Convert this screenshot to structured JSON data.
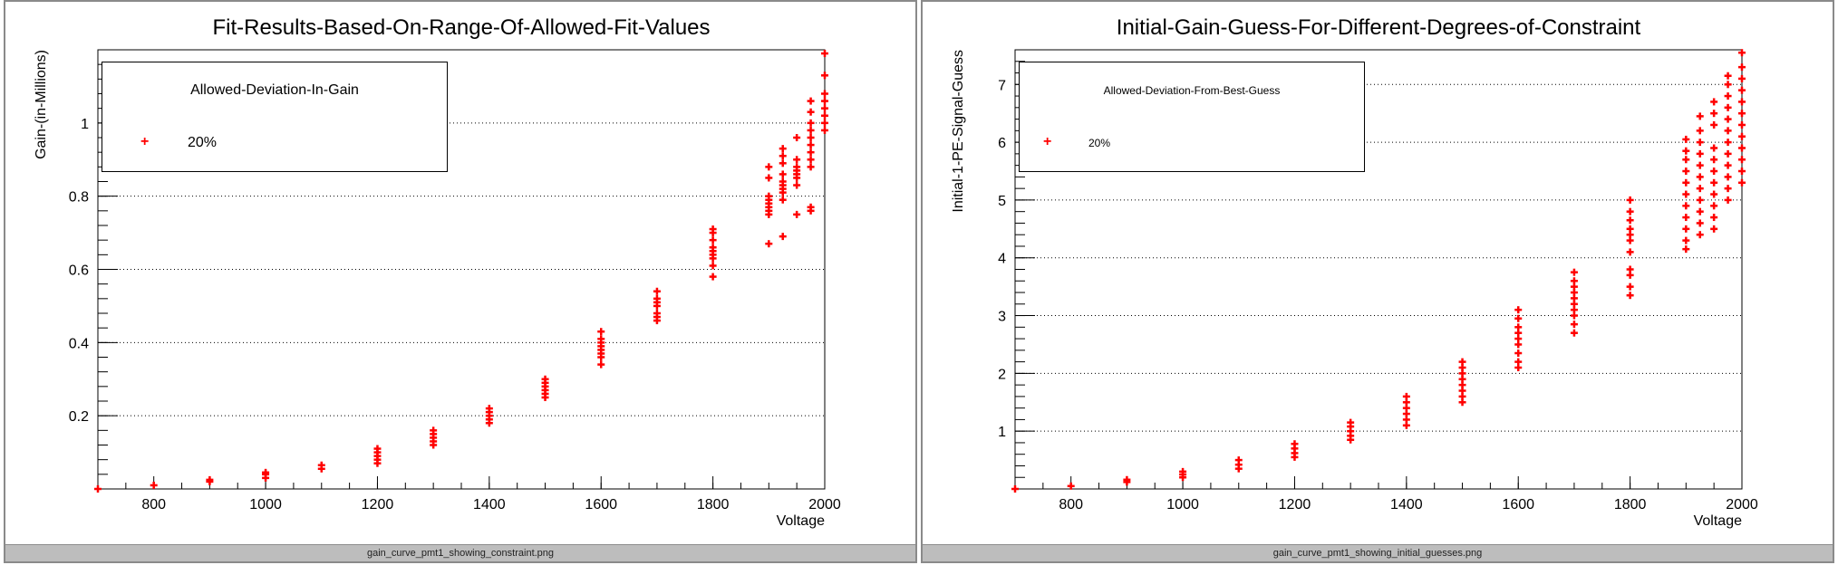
{
  "colors": {
    "marker": "#ff0000",
    "frame": "#000000",
    "grid": "#000000",
    "caption_bg": "#bdbdbd"
  },
  "chart_data": [
    {
      "type": "scatter",
      "title": "Fit-Results-Based-On-Range-Of-Allowed-Fit-Values",
      "xlabel": "Voltage",
      "ylabel": "Gain-(in-Millions)",
      "xlim": [
        700,
        2000
      ],
      "ylim": [
        0,
        1.2
      ],
      "xticks": [
        800,
        1000,
        1200,
        1400,
        1600,
        1800,
        2000
      ],
      "yticks": [
        0.2,
        0.4,
        0.6,
        0.8,
        1
      ],
      "ytick_labels": [
        "0.2",
        "0.4",
        "0.6",
        "0.8",
        "1"
      ],
      "grid": "horizontal",
      "legend": {
        "title": "Allowed-Deviation-In-Gain",
        "entries": [
          "20%"
        ],
        "placement": "top-left"
      },
      "caption": "gain_curve_pmt1_showing_constraint.png",
      "series": [
        {
          "name": "20%",
          "points": [
            [
              700,
              0.0
            ],
            [
              800,
              0.01
            ],
            [
              900,
              0.02
            ],
            [
              900,
              0.025
            ],
            [
              1000,
              0.03
            ],
            [
              1000,
              0.04
            ],
            [
              1000,
              0.045
            ],
            [
              1100,
              0.055
            ],
            [
              1100,
              0.065
            ],
            [
              1200,
              0.07
            ],
            [
              1200,
              0.08
            ],
            [
              1200,
              0.09
            ],
            [
              1200,
              0.1
            ],
            [
              1200,
              0.11
            ],
            [
              1300,
              0.12
            ],
            [
              1300,
              0.13
            ],
            [
              1300,
              0.14
            ],
            [
              1300,
              0.15
            ],
            [
              1300,
              0.16
            ],
            [
              1400,
              0.18
            ],
            [
              1400,
              0.19
            ],
            [
              1400,
              0.2
            ],
            [
              1400,
              0.21
            ],
            [
              1400,
              0.22
            ],
            [
              1500,
              0.25
            ],
            [
              1500,
              0.26
            ],
            [
              1500,
              0.27
            ],
            [
              1500,
              0.28
            ],
            [
              1500,
              0.29
            ],
            [
              1500,
              0.3
            ],
            [
              1600,
              0.34
            ],
            [
              1600,
              0.36
            ],
            [
              1600,
              0.37
            ],
            [
              1600,
              0.38
            ],
            [
              1600,
              0.39
            ],
            [
              1600,
              0.4
            ],
            [
              1600,
              0.41
            ],
            [
              1600,
              0.43
            ],
            [
              1700,
              0.46
            ],
            [
              1700,
              0.47
            ],
            [
              1700,
              0.48
            ],
            [
              1700,
              0.5
            ],
            [
              1700,
              0.51
            ],
            [
              1700,
              0.52
            ],
            [
              1700,
              0.54
            ],
            [
              1800,
              0.58
            ],
            [
              1800,
              0.61
            ],
            [
              1800,
              0.63
            ],
            [
              1800,
              0.64
            ],
            [
              1800,
              0.65
            ],
            [
              1800,
              0.66
            ],
            [
              1800,
              0.68
            ],
            [
              1800,
              0.7
            ],
            [
              1800,
              0.71
            ],
            [
              1900,
              0.67
            ],
            [
              1900,
              0.75
            ],
            [
              1900,
              0.76
            ],
            [
              1900,
              0.77
            ],
            [
              1900,
              0.78
            ],
            [
              1900,
              0.79
            ],
            [
              1900,
              0.8
            ],
            [
              1900,
              0.85
            ],
            [
              1900,
              0.88
            ],
            [
              1925,
              0.69
            ],
            [
              1925,
              0.79
            ],
            [
              1925,
              0.81
            ],
            [
              1925,
              0.82
            ],
            [
              1925,
              0.83
            ],
            [
              1925,
              0.84
            ],
            [
              1925,
              0.86
            ],
            [
              1925,
              0.89
            ],
            [
              1925,
              0.91
            ],
            [
              1925,
              0.93
            ],
            [
              1950,
              0.75
            ],
            [
              1950,
              0.83
            ],
            [
              1950,
              0.85
            ],
            [
              1950,
              0.86
            ],
            [
              1950,
              0.87
            ],
            [
              1950,
              0.88
            ],
            [
              1950,
              0.9
            ],
            [
              1950,
              0.96
            ],
            [
              1975,
              0.76
            ],
            [
              1975,
              0.77
            ],
            [
              1975,
              0.88
            ],
            [
              1975,
              0.9
            ],
            [
              1975,
              0.92
            ],
            [
              1975,
              0.94
            ],
            [
              1975,
              0.96
            ],
            [
              1975,
              0.98
            ],
            [
              1975,
              1.0
            ],
            [
              1975,
              1.03
            ],
            [
              1975,
              1.06
            ],
            [
              2000,
              0.98
            ],
            [
              2000,
              1.0
            ],
            [
              2000,
              1.02
            ],
            [
              2000,
              1.04
            ],
            [
              2000,
              1.06
            ],
            [
              2000,
              1.08
            ],
            [
              2000,
              1.13
            ],
            [
              2000,
              1.19
            ]
          ]
        }
      ]
    },
    {
      "type": "scatter",
      "title": "Initial-Gain-Guess-For-Different-Degrees-of-Constraint",
      "xlabel": "Voltage",
      "ylabel": "Initial-1-PE-Signal-Guess",
      "xlim": [
        700,
        2000
      ],
      "ylim": [
        0,
        7.6
      ],
      "xticks": [
        800,
        1000,
        1200,
        1400,
        1600,
        1800,
        2000
      ],
      "yticks": [
        1,
        2,
        3,
        4,
        5,
        6,
        7
      ],
      "ytick_labels": [
        "1",
        "2",
        "3",
        "4",
        "5",
        "6",
        "7"
      ],
      "grid": "horizontal",
      "legend": {
        "title": "Allowed-Deviation-From-Best-Guess",
        "entries": [
          "20%"
        ],
        "placement": "top-left"
      },
      "caption": "gain_curve_pmt1_showing_initial_guesses.png",
      "series": [
        {
          "name": "20%",
          "points": [
            [
              700,
              0.0
            ],
            [
              800,
              0.05
            ],
            [
              900,
              0.12
            ],
            [
              900,
              0.16
            ],
            [
              1000,
              0.2
            ],
            [
              1000,
              0.25
            ],
            [
              1000,
              0.3
            ],
            [
              1100,
              0.35
            ],
            [
              1100,
              0.42
            ],
            [
              1100,
              0.5
            ],
            [
              1200,
              0.55
            ],
            [
              1200,
              0.62
            ],
            [
              1200,
              0.7
            ],
            [
              1200,
              0.78
            ],
            [
              1300,
              0.85
            ],
            [
              1300,
              0.92
            ],
            [
              1300,
              1.0
            ],
            [
              1300,
              1.08
            ],
            [
              1300,
              1.15
            ],
            [
              1400,
              1.1
            ],
            [
              1400,
              1.2
            ],
            [
              1400,
              1.3
            ],
            [
              1400,
              1.4
            ],
            [
              1400,
              1.5
            ],
            [
              1400,
              1.6
            ],
            [
              1500,
              1.5
            ],
            [
              1500,
              1.6
            ],
            [
              1500,
              1.7
            ],
            [
              1500,
              1.8
            ],
            [
              1500,
              1.9
            ],
            [
              1500,
              2.0
            ],
            [
              1500,
              2.1
            ],
            [
              1500,
              2.2
            ],
            [
              1600,
              2.1
            ],
            [
              1600,
              2.2
            ],
            [
              1600,
              2.35
            ],
            [
              1600,
              2.5
            ],
            [
              1600,
              2.6
            ],
            [
              1600,
              2.7
            ],
            [
              1600,
              2.8
            ],
            [
              1600,
              2.95
            ],
            [
              1600,
              3.1
            ],
            [
              1700,
              2.7
            ],
            [
              1700,
              2.85
            ],
            [
              1700,
              3.0
            ],
            [
              1700,
              3.1
            ],
            [
              1700,
              3.2
            ],
            [
              1700,
              3.3
            ],
            [
              1700,
              3.4
            ],
            [
              1700,
              3.5
            ],
            [
              1700,
              3.6
            ],
            [
              1700,
              3.75
            ],
            [
              1800,
              3.35
            ],
            [
              1800,
              3.5
            ],
            [
              1800,
              3.7
            ],
            [
              1800,
              3.8
            ],
            [
              1800,
              4.1
            ],
            [
              1800,
              4.3
            ],
            [
              1800,
              4.4
            ],
            [
              1800,
              4.5
            ],
            [
              1800,
              4.65
            ],
            [
              1800,
              4.8
            ],
            [
              1800,
              5.0
            ],
            [
              1900,
              4.15
            ],
            [
              1900,
              4.3
            ],
            [
              1900,
              4.5
            ],
            [
              1900,
              4.7
            ],
            [
              1900,
              4.9
            ],
            [
              1900,
              5.1
            ],
            [
              1900,
              5.3
            ],
            [
              1900,
              5.5
            ],
            [
              1900,
              5.7
            ],
            [
              1900,
              5.85
            ],
            [
              1900,
              6.05
            ],
            [
              1925,
              4.4
            ],
            [
              1925,
              4.6
            ],
            [
              1925,
              4.8
            ],
            [
              1925,
              5.0
            ],
            [
              1925,
              5.2
            ],
            [
              1925,
              5.4
            ],
            [
              1925,
              5.6
            ],
            [
              1925,
              5.8
            ],
            [
              1925,
              6.0
            ],
            [
              1925,
              6.2
            ],
            [
              1925,
              6.45
            ],
            [
              1950,
              4.5
            ],
            [
              1950,
              4.7
            ],
            [
              1950,
              4.9
            ],
            [
              1950,
              5.1
            ],
            [
              1950,
              5.3
            ],
            [
              1950,
              5.5
            ],
            [
              1950,
              5.7
            ],
            [
              1950,
              5.9
            ],
            [
              1950,
              6.3
            ],
            [
              1950,
              6.5
            ],
            [
              1950,
              6.7
            ],
            [
              1975,
              5.0
            ],
            [
              1975,
              5.2
            ],
            [
              1975,
              5.4
            ],
            [
              1975,
              5.6
            ],
            [
              1975,
              5.8
            ],
            [
              1975,
              6.0
            ],
            [
              1975,
              6.2
            ],
            [
              1975,
              6.4
            ],
            [
              1975,
              6.6
            ],
            [
              1975,
              6.8
            ],
            [
              1975,
              7.0
            ],
            [
              1975,
              7.15
            ],
            [
              2000,
              5.3
            ],
            [
              2000,
              5.5
            ],
            [
              2000,
              5.7
            ],
            [
              2000,
              5.9
            ],
            [
              2000,
              6.1
            ],
            [
              2000,
              6.3
            ],
            [
              2000,
              6.5
            ],
            [
              2000,
              6.7
            ],
            [
              2000,
              6.9
            ],
            [
              2000,
              7.1
            ],
            [
              2000,
              7.3
            ],
            [
              2000,
              7.55
            ]
          ]
        }
      ]
    }
  ]
}
